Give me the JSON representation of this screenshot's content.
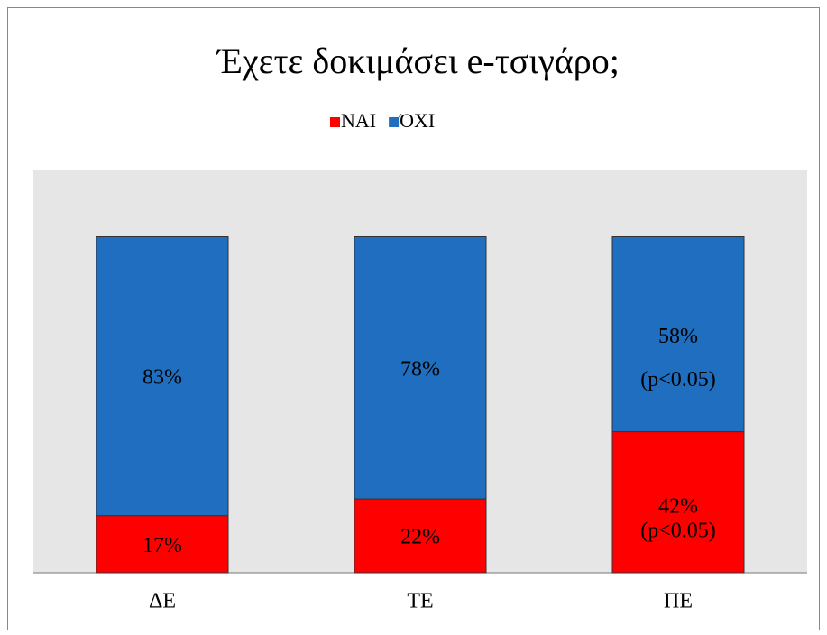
{
  "chart_data": {
    "type": "stacked_bar",
    "title": "Έχετε δοκιμάσει e-τσιγάρο;",
    "categories": [
      "ΔΕ",
      "ΤΕ",
      "ΠΕ"
    ],
    "series": [
      {
        "name": "ΝΑΙ",
        "color": "#ff0000",
        "values": [
          17,
          22,
          42
        ],
        "value_labels": [
          "17%",
          "22%",
          "42%"
        ]
      },
      {
        "name": "ΌΧΙ",
        "color": "#1f6ebf",
        "values": [
          83,
          78,
          58
        ],
        "value_labels": [
          "83%",
          "78%",
          "58%"
        ]
      }
    ],
    "annotations": [
      "(p<0.05)",
      "(p<0.05)"
    ],
    "ylim": [
      0,
      120
    ],
    "legend": "top"
  }
}
